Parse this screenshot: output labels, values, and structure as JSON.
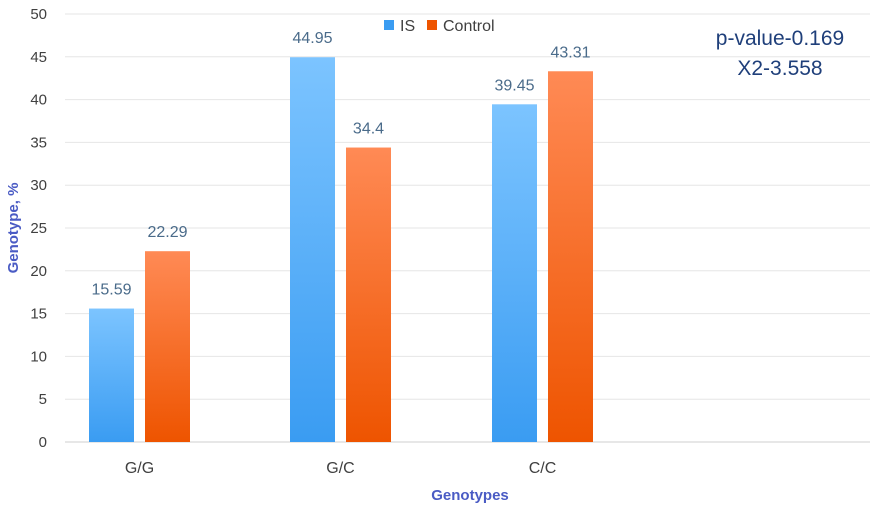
{
  "chart_data": {
    "type": "bar",
    "categories": [
      "G/G",
      "G/C",
      "C/C"
    ],
    "series": [
      {
        "name": "IS",
        "values": [
          15.59,
          44.95,
          39.45
        ],
        "color_top": "#7cc4ff",
        "color_bottom": "#3a9cf2"
      },
      {
        "name": "Control",
        "values": [
          22.29,
          34.4,
          43.31
        ],
        "color_top": "#ff8a55",
        "color_bottom": "#ee5400"
      }
    ],
    "xlabel": "Genotypes",
    "ylabel": "Genotype, %",
    "ylim": [
      0,
      50
    ],
    "yticks": [
      0,
      5,
      10,
      15,
      20,
      25,
      30,
      35,
      40,
      45,
      50
    ],
    "grid": true,
    "legend_position": "top-center"
  },
  "annotation": {
    "pvalue": "p-value-0.169",
    "chi2": "X2-3.558"
  }
}
